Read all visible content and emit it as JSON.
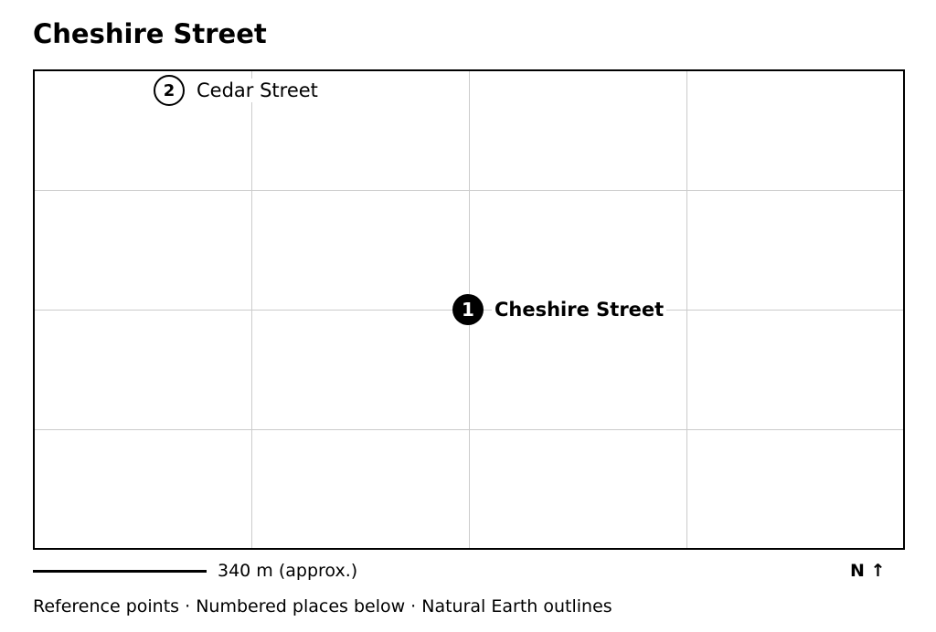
{
  "title": "Cheshire Street",
  "places": [
    {
      "number": "1",
      "name": "Cheshire Street"
    },
    {
      "number": "2",
      "name": "Cedar Street"
    }
  ],
  "scale": {
    "label": "340 m (approx.)"
  },
  "north_arrow": "N ↑",
  "footer": "Reference points · Numbered places below · Natural Earth outlines"
}
